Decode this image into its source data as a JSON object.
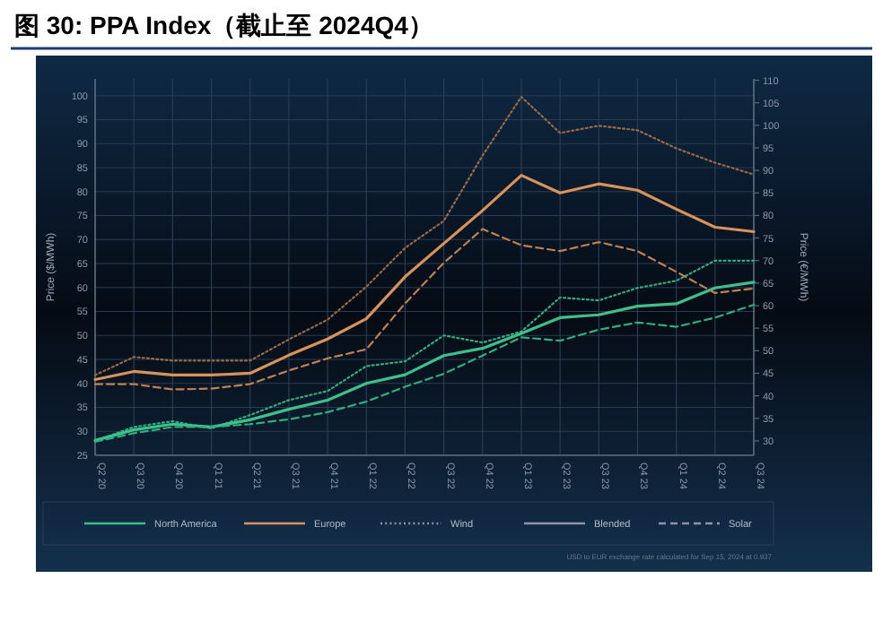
{
  "chart_data": {
    "type": "line",
    "title": "图 30:  PPA Index（截止至 2024Q4）",
    "ylabel": "Price ($/MWh)",
    "y2label": "Price (€/MWh)",
    "categories": [
      "Q2 20",
      "Q3 20",
      "Q4 20",
      "Q1 21",
      "Q2 21",
      "Q3 21",
      "Q4 21",
      "Q1 22",
      "Q2 22",
      "Q3 22",
      "Q4 22",
      "Q1 23",
      "Q2 23",
      "Q3 23",
      "Q4 23",
      "Q1 24",
      "Q2 24",
      "Q3 24"
    ],
    "ylim": [
      25,
      103.5
    ],
    "yticks": [
      25,
      30,
      35,
      40,
      45,
      50,
      55,
      60,
      65,
      70,
      75,
      80,
      85,
      90,
      95,
      100
    ],
    "y2lim": [
      26.8,
      110.3
    ],
    "y2ticks": [
      30,
      35,
      40,
      45,
      50,
      55,
      60,
      65,
      70,
      75,
      80,
      85,
      90,
      95,
      100,
      105,
      110
    ],
    "grid": true,
    "series": [
      {
        "color": "#2fae7f",
        "line_style": "dotted",
        "values": [
          28,
          30.9,
          32.1,
          30.6,
          33.4,
          36.5,
          38.4,
          43.6,
          44.6,
          50,
          48.5,
          50.8,
          57.9,
          57.3,
          59.9,
          61.4,
          65.6,
          65.6
        ]
      },
      {
        "color": "#3ec08c",
        "line_style": "solid",
        "values": [
          28.1,
          30.3,
          31.5,
          30.9,
          32.4,
          34.6,
          36.5,
          40,
          41.8,
          45.8,
          47.3,
          50.4,
          53.7,
          54.3,
          56.1,
          56.6,
          59.9,
          61.1
        ]
      },
      {
        "color": "#2fae7f",
        "line_style": "dashed",
        "values": [
          27.8,
          29.6,
          30.9,
          30.9,
          31.5,
          32.5,
          34,
          36.2,
          39.3,
          42,
          45.8,
          49.6,
          48.9,
          51.2,
          52.7,
          51.8,
          53.7,
          56.4
        ]
      },
      {
        "color": "#9a6a48",
        "line_style": "dotted",
        "axis": "y2",
        "values": [
          44.6,
          48.6,
          47.8,
          47.8,
          47.8,
          52.5,
          56.9,
          64.2,
          72.8,
          78.8,
          93.3,
          106.3,
          98.3,
          99.9,
          98.9,
          94.9,
          91.7,
          89.1
        ]
      },
      {
        "color": "#d9925a",
        "line_style": "solid",
        "axis": "y2",
        "values": [
          43.6,
          45.4,
          44.6,
          44.6,
          45,
          49,
          52.6,
          57.1,
          66.4,
          73.8,
          81.1,
          88.9,
          85,
          87,
          85.6,
          81.4,
          77.4,
          76.4
        ]
      },
      {
        "color": "#c08055",
        "line_style": "dashed",
        "axis": "y2",
        "values": [
          42.6,
          42.6,
          41.4,
          41.6,
          42.6,
          45.6,
          48.3,
          50.3,
          60.5,
          69.5,
          77,
          73.4,
          72.1,
          74.1,
          72.1,
          67.5,
          62.8,
          63.8
        ]
      }
    ],
    "annotations": [
      "North America",
      "Europe",
      "Wind",
      "Blended",
      "Solar",
      "USD to EUR exchange rate calculated for Sep 15, 2024 at 0.937"
    ]
  }
}
